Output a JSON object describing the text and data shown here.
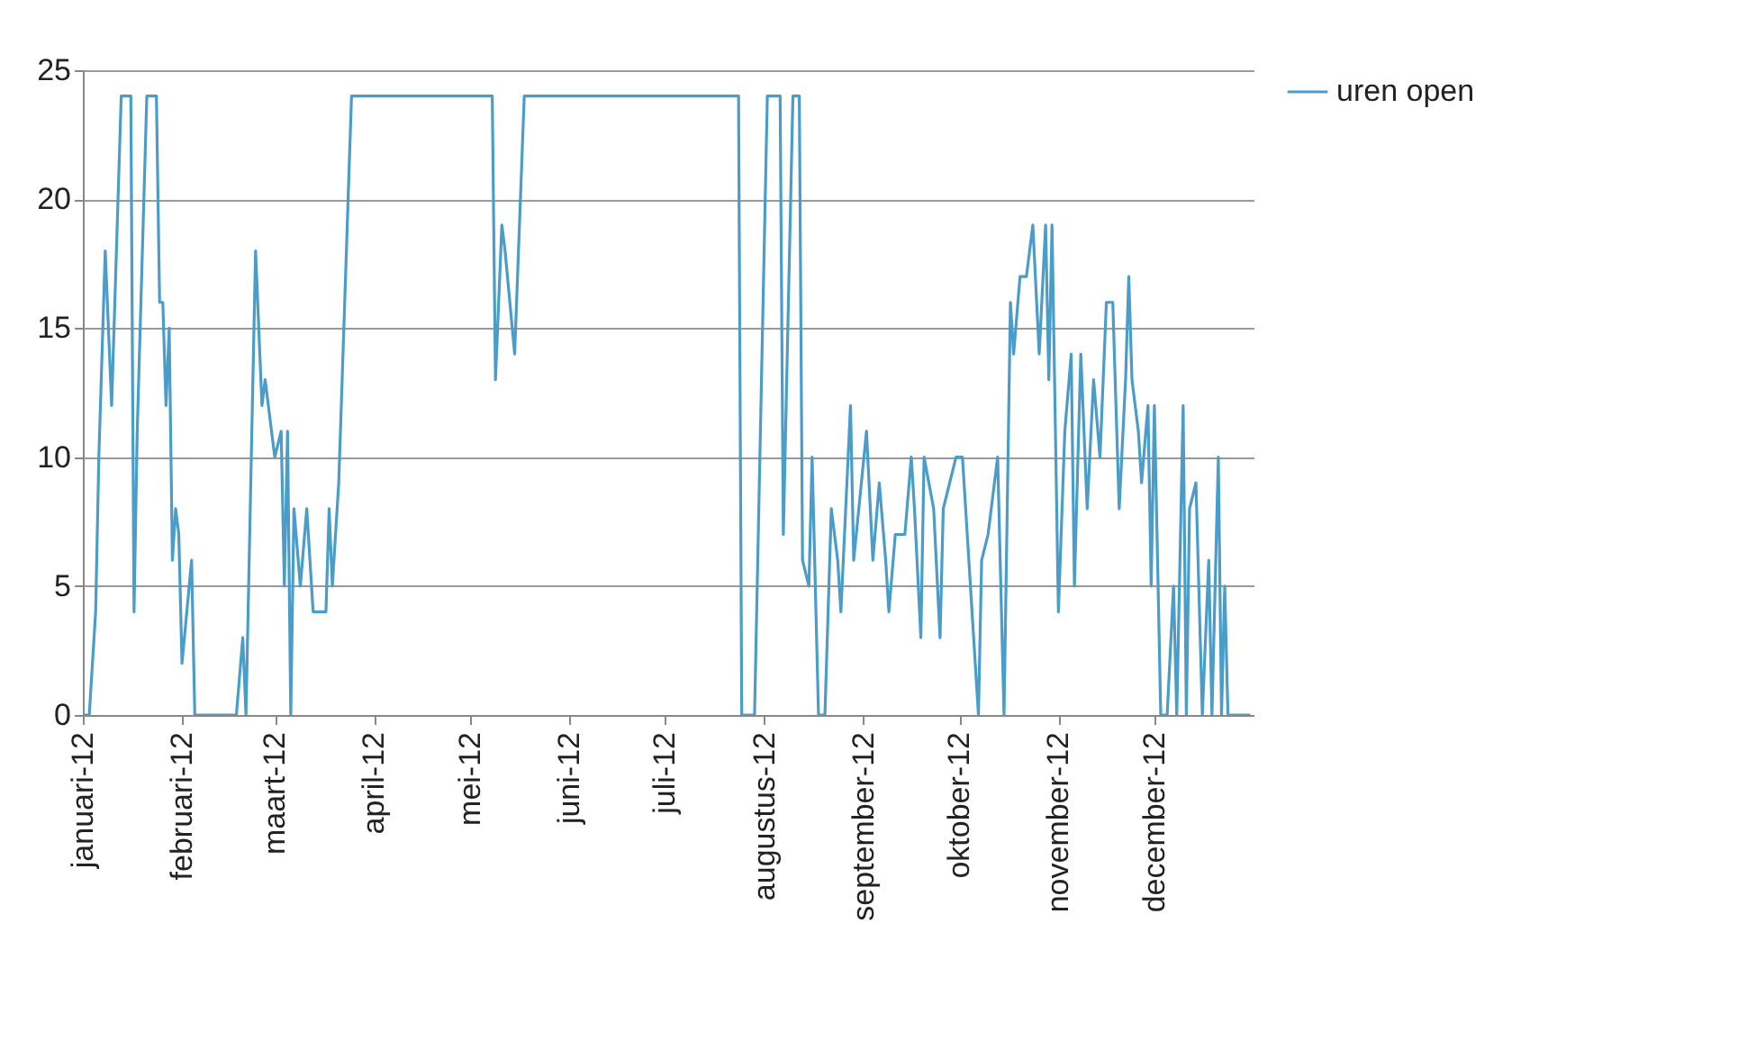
{
  "chart_data": {
    "type": "line",
    "x": [
      "2012-01-01",
      "2012-01-03",
      "2012-01-05",
      "2012-01-06",
      "2012-01-08",
      "2012-01-10",
      "2012-01-12",
      "2012-01-13",
      "2012-01-16",
      "2012-01-17",
      "2012-01-18",
      "2012-01-21",
      "2012-01-24",
      "2012-01-25",
      "2012-01-26",
      "2012-01-27",
      "2012-01-28",
      "2012-01-29",
      "2012-01-30",
      "2012-01-31",
      "2012-02-01",
      "2012-02-04",
      "2012-02-05",
      "2012-02-18",
      "2012-02-20",
      "2012-02-21",
      "2012-02-24",
      "2012-02-26",
      "2012-02-27",
      "2012-03-01",
      "2012-03-03",
      "2012-03-04",
      "2012-03-05",
      "2012-03-06",
      "2012-03-07",
      "2012-03-09",
      "2012-03-11",
      "2012-03-13",
      "2012-03-17",
      "2012-03-18",
      "2012-03-19",
      "2012-03-21",
      "2012-03-25",
      "2012-05-08",
      "2012-05-09",
      "2012-05-11",
      "2012-05-12",
      "2012-05-15",
      "2012-05-18",
      "2012-07-24",
      "2012-07-25",
      "2012-07-29",
      "2012-08-02",
      "2012-08-06",
      "2012-08-07",
      "2012-08-10",
      "2012-08-12",
      "2012-08-13",
      "2012-08-15",
      "2012-08-16",
      "2012-08-18",
      "2012-08-20",
      "2012-08-22",
      "2012-08-24",
      "2012-08-25",
      "2012-08-28",
      "2012-08-29",
      "2012-09-02",
      "2012-09-04",
      "2012-09-06",
      "2012-09-08",
      "2012-09-09",
      "2012-09-11",
      "2012-09-14",
      "2012-09-16",
      "2012-09-17",
      "2012-09-19",
      "2012-09-20",
      "2012-09-23",
      "2012-09-25",
      "2012-09-26",
      "2012-09-28",
      "2012-09-30",
      "2012-10-02",
      "2012-10-04",
      "2012-10-07",
      "2012-10-08",
      "2012-10-10",
      "2012-10-13",
      "2012-10-15",
      "2012-10-17",
      "2012-10-18",
      "2012-10-20",
      "2012-10-22",
      "2012-10-24",
      "2012-10-26",
      "2012-10-28",
      "2012-10-29",
      "2012-10-30",
      "2012-11-01",
      "2012-11-03",
      "2012-11-05",
      "2012-11-06",
      "2012-11-08",
      "2012-11-10",
      "2012-11-12",
      "2012-11-14",
      "2012-11-16",
      "2012-11-18",
      "2012-11-20",
      "2012-11-22",
      "2012-11-23",
      "2012-11-24",
      "2012-11-26",
      "2012-11-27",
      "2012-11-29",
      "2012-11-30",
      "2012-12-01",
      "2012-12-03",
      "2012-12-05",
      "2012-12-07",
      "2012-12-08",
      "2012-12-10",
      "2012-12-11",
      "2012-12-12",
      "2012-12-14",
      "2012-12-16",
      "2012-12-18",
      "2012-12-19",
      "2012-12-21",
      "2012-12-22",
      "2012-12-23",
      "2012-12-24",
      "2012-12-31"
    ],
    "series": [
      {
        "name": "uren open",
        "color": "#4a9cc9",
        "values": [
          0,
          0,
          4,
          10,
          18,
          12,
          20,
          24,
          24,
          4,
          11,
          24,
          24,
          16,
          16,
          12,
          15,
          6,
          8,
          7,
          2,
          6,
          0,
          0,
          3,
          0,
          18,
          12,
          13,
          10,
          11,
          5,
          11,
          0,
          8,
          5,
          8,
          4,
          4,
          8,
          5,
          9,
          24,
          24,
          13,
          19,
          18,
          14,
          24,
          24,
          0,
          0,
          24,
          24,
          7,
          24,
          24,
          6,
          5,
          10,
          0,
          0,
          8,
          6,
          4,
          12,
          6,
          11,
          6,
          9,
          6,
          4,
          7,
          7,
          10,
          8,
          3,
          10,
          8,
          3,
          8,
          9,
          10,
          10,
          6,
          0,
          6,
          7,
          10,
          0,
          16,
          14,
          17,
          17,
          19,
          14,
          19,
          13,
          19,
          4,
          11,
          14,
          5,
          14,
          8,
          13,
          10,
          16,
          16,
          8,
          13,
          17,
          13,
          11,
          9,
          12,
          5,
          12,
          0,
          0,
          5,
          0,
          12,
          0,
          8,
          9,
          0,
          6,
          0,
          10,
          0,
          5,
          0,
          0
        ]
      }
    ],
    "xlim": [
      "2012-01-01",
      "2013-01-01"
    ],
    "xticks": [
      {
        "value": "2012-01-01",
        "label": "januari-12"
      },
      {
        "value": "2012-02-01",
        "label": "februari-12"
      },
      {
        "value": "2012-03-01",
        "label": "maart-12"
      },
      {
        "value": "2012-04-01",
        "label": "april-12"
      },
      {
        "value": "2012-05-01",
        "label": "mei-12"
      },
      {
        "value": "2012-06-01",
        "label": "juni-12"
      },
      {
        "value": "2012-07-01",
        "label": "juli-12"
      },
      {
        "value": "2012-08-01",
        "label": "augustus-12"
      },
      {
        "value": "2012-09-01",
        "label": "september-12"
      },
      {
        "value": "2012-10-01",
        "label": "oktober-12"
      },
      {
        "value": "2012-11-01",
        "label": "november-12"
      },
      {
        "value": "2012-12-01",
        "label": "december-12"
      }
    ],
    "ylim": [
      0,
      25
    ],
    "yticks": [
      0,
      5,
      10,
      15,
      20,
      25
    ],
    "grid": "y",
    "legend": "right"
  }
}
